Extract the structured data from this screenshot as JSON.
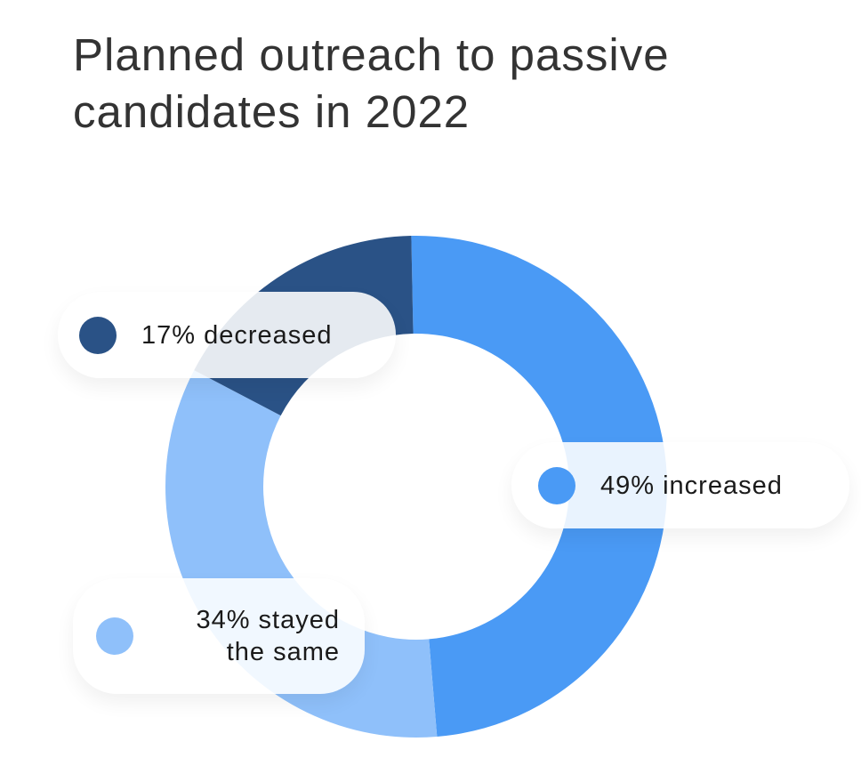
{
  "chart_data": {
    "type": "pie",
    "variant": "donut",
    "title": "Planned outreach to passive candidates in 2022",
    "slices": [
      {
        "name": "increased",
        "value": 49,
        "label": "49% increased",
        "color": "#4a9af5"
      },
      {
        "name": "stayed the same",
        "value": 34,
        "label_line1": "34% stayed",
        "label_line2": "the same",
        "color": "#8fc0fa"
      },
      {
        "name": "decreased",
        "value": 17,
        "label": "17% decreased",
        "color": "#2a5286"
      }
    ],
    "start": "top",
    "direction": "clockwise"
  }
}
